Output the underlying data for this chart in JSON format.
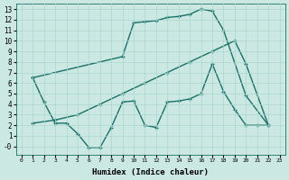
{
  "xlabel": "Humidex (Indice chaleur)",
  "bg_color": "#cce8e3",
  "line_color": "#1a7068",
  "grid_color": "#aad8ce",
  "xlim": [
    -0.5,
    23.5
  ],
  "ylim": [
    -0.8,
    13.5
  ],
  "xticks": [
    0,
    1,
    2,
    3,
    4,
    5,
    6,
    7,
    8,
    9,
    10,
    11,
    12,
    13,
    14,
    15,
    16,
    17,
    18,
    19,
    20,
    21,
    22,
    23
  ],
  "yticks": [
    0,
    1,
    2,
    3,
    4,
    5,
    6,
    7,
    8,
    9,
    10,
    11,
    12,
    13
  ],
  "ytick_labels": [
    "-0",
    "1",
    "2",
    "3",
    "4",
    "5",
    "6",
    "7",
    "8",
    "9",
    "10",
    "11",
    "12",
    "13"
  ],
  "curve_top_x": [
    1,
    9,
    10,
    11,
    12,
    13,
    14,
    15,
    16,
    17,
    18,
    20,
    22
  ],
  "curve_top_y": [
    6.5,
    8.5,
    11.7,
    11.8,
    11.9,
    12.2,
    12.3,
    12.5,
    13.0,
    12.8,
    11.0,
    4.8,
    2.0
  ],
  "curve_mid_x": [
    1,
    3,
    5,
    7,
    9,
    11,
    13,
    15,
    17,
    19,
    20,
    22
  ],
  "curve_mid_y": [
    2.2,
    2.5,
    3.0,
    4.0,
    5.0,
    6.0,
    7.0,
    8.0,
    9.0,
    10.0,
    7.8,
    2.0
  ],
  "curve_bot_x": [
    1,
    2,
    3,
    4,
    5,
    6,
    7,
    8,
    9,
    10,
    11,
    12,
    13,
    14,
    15,
    16,
    17,
    18,
    19,
    20,
    21,
    22
  ],
  "curve_bot_y": [
    6.5,
    4.2,
    2.2,
    2.2,
    1.2,
    -0.1,
    -0.1,
    1.8,
    4.2,
    4.3,
    2.0,
    1.8,
    4.2,
    4.3,
    4.5,
    5.0,
    7.8,
    5.2,
    3.5,
    2.0,
    2.0,
    2.0
  ]
}
